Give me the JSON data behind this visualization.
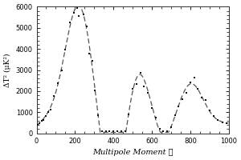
{
  "title": "",
  "xlabel": "Multipole Moment ℓ",
  "ylabel": "ΔT² (μK²)",
  "xlim": [
    0,
    1000
  ],
  "ylim": [
    0,
    6000
  ],
  "xticks": [
    0,
    200,
    400,
    600,
    800,
    1000
  ],
  "yticks": [
    0,
    1000,
    2000,
    3000,
    4000,
    5000,
    6000
  ],
  "bg_color": "#ffffff",
  "line_color": "#555555",
  "dot_color": "#111111",
  "figsize": [
    3.0,
    2.0
  ],
  "dpi": 100
}
